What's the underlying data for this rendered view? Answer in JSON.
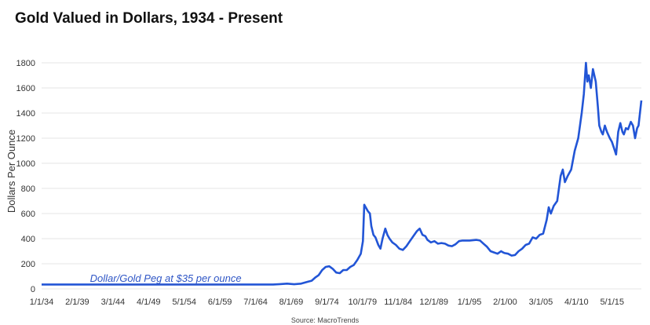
{
  "chart_data": {
    "type": "line",
    "title": "Gold Valued in Dollars, 1934 - Present",
    "xlabel": "",
    "ylabel": "Dollars Per Ounce",
    "source": "Source: MacroTrends",
    "ylim": [
      0,
      1800
    ],
    "yticks": [
      0,
      200,
      400,
      600,
      800,
      1000,
      1200,
      1400,
      1600,
      1800
    ],
    "xlim": [
      1934.0,
      2019.5
    ],
    "xticks": [
      {
        "label": "1/1/34",
        "x": 1934.0
      },
      {
        "label": "2/1/39",
        "x": 1939.08
      },
      {
        "label": "3/1/44",
        "x": 1944.17
      },
      {
        "label": "4/1/49",
        "x": 1949.25
      },
      {
        "label": "5/1/54",
        "x": 1954.33
      },
      {
        "label": "6/1/59",
        "x": 1959.42
      },
      {
        "label": "7/1/64",
        "x": 1964.5
      },
      {
        "label": "8/1/69",
        "x": 1969.58
      },
      {
        "label": "9/1/74",
        "x": 1974.67
      },
      {
        "label": "10/1/79",
        "x": 1979.75
      },
      {
        "label": "11/1/84",
        "x": 1984.83
      },
      {
        "label": "12/1/89",
        "x": 1989.92
      },
      {
        "label": "1/1/95",
        "x": 1995.0
      },
      {
        "label": "2/1/00",
        "x": 2000.08
      },
      {
        "label": "3/1/05",
        "x": 2005.17
      },
      {
        "label": "4/1/10",
        "x": 2010.25
      },
      {
        "label": "5/1/15",
        "x": 2015.33
      }
    ],
    "annotation": {
      "text": "Dollar/Gold Peg at $35 per ounce",
      "x": 1940.9,
      "y": 55
    },
    "grid": true,
    "color": "#2255d6",
    "series": [
      {
        "x": [
          1934.0,
          1940.0,
          1950.0,
          1960.0,
          1967.0,
          1968.0,
          1969.0,
          1970.0,
          1971.0,
          1972.0,
          1972.5,
          1973.0,
          1973.5,
          1974.0,
          1974.5,
          1975.0,
          1975.5,
          1976.0,
          1976.5,
          1977.0,
          1977.5,
          1978.0,
          1978.5,
          1979.0,
          1979.5,
          1979.8,
          1980.0,
          1980.2,
          1980.5,
          1980.8,
          1981.0,
          1981.3,
          1981.6,
          1982.0,
          1982.3,
          1982.6,
          1983.0,
          1983.3,
          1983.6,
          1984.0,
          1984.5,
          1985.0,
          1985.5,
          1986.0,
          1986.5,
          1987.0,
          1987.5,
          1987.9,
          1988.3,
          1988.7,
          1989.0,
          1989.5,
          1990.0,
          1990.5,
          1991.0,
          1991.5,
          1992.0,
          1992.5,
          1993.0,
          1993.5,
          1994.0,
          1995.0,
          1996.0,
          1996.5,
          1997.0,
          1997.5,
          1998.0,
          1998.5,
          1999.0,
          1999.5,
          1999.8,
          2000.0,
          2000.5,
          2001.0,
          2001.5,
          2002.0,
          2002.5,
          2003.0,
          2003.5,
          2004.0,
          2004.5,
          2005.0,
          2005.5,
          2006.0,
          2006.3,
          2006.6,
          2007.0,
          2007.5,
          2008.0,
          2008.3,
          2008.6,
          2009.0,
          2009.5,
          2010.0,
          2010.5,
          2011.0,
          2011.3,
          2011.6,
          2011.8,
          2012.0,
          2012.3,
          2012.6,
          2012.8,
          2013.0,
          2013.3,
          2013.5,
          2013.8,
          2014.0,
          2014.3,
          2014.6,
          2015.0,
          2015.3,
          2015.6,
          2015.9,
          2016.2,
          2016.5,
          2016.8,
          2017.0,
          2017.3,
          2017.6,
          2018.0,
          2018.3,
          2018.6,
          2018.9,
          2019.1,
          2019.3,
          2019.5
        ],
        "y": [
          35,
          35,
          35,
          35,
          35,
          38,
          42,
          37,
          42,
          58,
          65,
          90,
          110,
          150,
          175,
          180,
          160,
          130,
          125,
          150,
          150,
          175,
          190,
          230,
          280,
          380,
          670,
          650,
          620,
          600,
          500,
          430,
          410,
          350,
          320,
          400,
          480,
          430,
          400,
          370,
          350,
          320,
          310,
          340,
          380,
          420,
          460,
          480,
          430,
          420,
          390,
          370,
          380,
          360,
          365,
          360,
          345,
          340,
          355,
          380,
          385,
          385,
          390,
          385,
          360,
          335,
          300,
          290,
          280,
          300,
          290,
          285,
          280,
          265,
          270,
          300,
          320,
          350,
          360,
          410,
          400,
          430,
          440,
          550,
          650,
          600,
          660,
          700,
          900,
          950,
          850,
          900,
          950,
          1100,
          1200,
          1400,
          1550,
          1800,
          1650,
          1700,
          1600,
          1750,
          1700,
          1650,
          1450,
          1300,
          1250,
          1230,
          1300,
          1250,
          1200,
          1170,
          1120,
          1070,
          1250,
          1320,
          1250,
          1230,
          1280,
          1270,
          1330,
          1300,
          1200,
          1280,
          1300,
          1400,
          1500
        ]
      }
    ]
  }
}
